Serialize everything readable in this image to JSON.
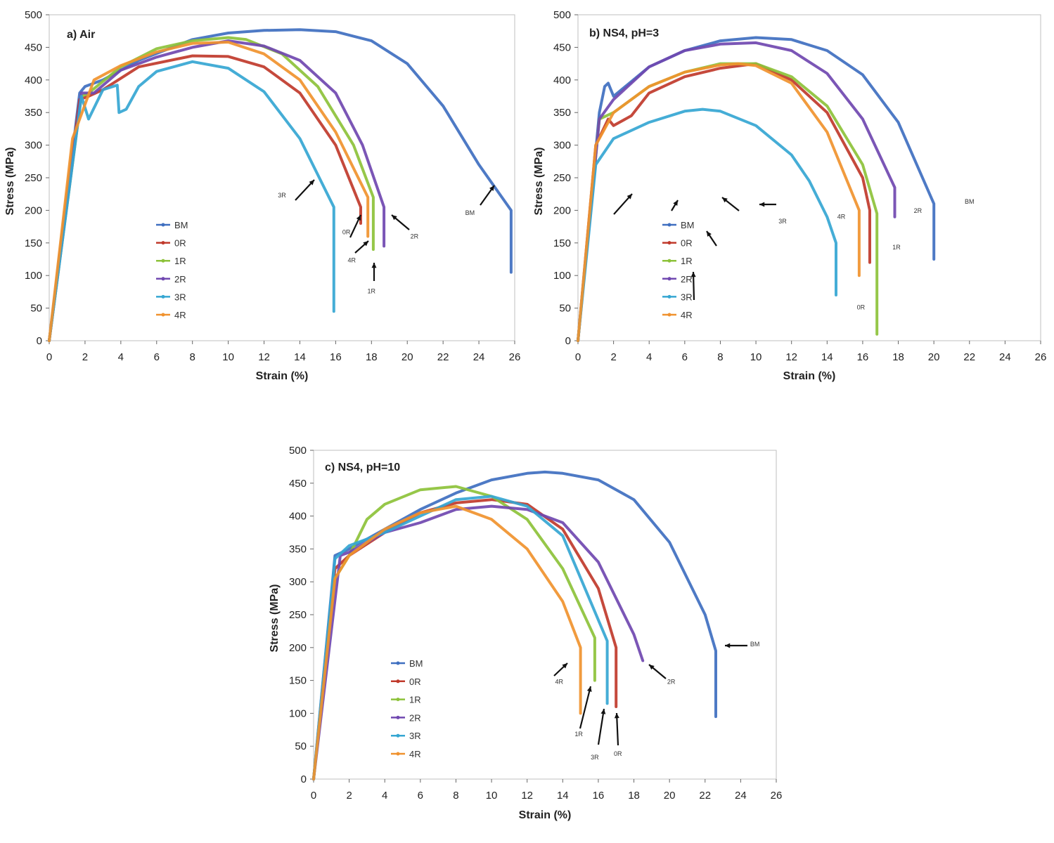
{
  "chart_data": [
    {
      "type": "line",
      "title": "a) Air",
      "xlabel": "Strain (%)",
      "ylabel": "Stress (MPa)",
      "xlim": [
        0,
        26
      ],
      "ylim": [
        0,
        500
      ],
      "xticks": [
        "0",
        "2",
        "4",
        "6",
        "8",
        "10",
        "12",
        "14",
        "16",
        "18",
        "20",
        "22",
        "24",
        "26"
      ],
      "yticks": [
        "0",
        "50",
        "100",
        "150",
        "200",
        "250",
        "300",
        "350",
        "400",
        "450",
        "500"
      ],
      "grid": false,
      "legend": "left-middle",
      "series": [
        {
          "name": "BM",
          "color": "#3f6fc0",
          "x": [
            0,
            1.7,
            2.0,
            3,
            5,
            8,
            10,
            12,
            14,
            16,
            18,
            20,
            22,
            24,
            25.8,
            25.8
          ],
          "y": [
            0,
            380,
            390,
            400,
            430,
            462,
            472,
            476,
            477,
            474,
            460,
            425,
            360,
            270,
            200,
            105
          ]
        },
        {
          "name": "0R",
          "color": "#c0392b",
          "x": [
            0,
            1.7,
            2.2,
            3,
            5,
            8,
            10,
            12,
            14,
            16,
            17.4,
            17.4
          ],
          "y": [
            0,
            370,
            375,
            385,
            420,
            437,
            436,
            420,
            380,
            300,
            205,
            180
          ]
        },
        {
          "name": "1R",
          "color": "#8dc23a",
          "x": [
            0,
            1.8,
            2.2,
            4,
            6,
            8,
            10,
            11,
            13,
            15,
            17,
            18.1,
            18.1
          ],
          "y": [
            0,
            375,
            380,
            420,
            448,
            460,
            465,
            462,
            440,
            390,
            300,
            220,
            140
          ]
        },
        {
          "name": "2R",
          "color": "#7048b0",
          "x": [
            0,
            1.8,
            2.5,
            4,
            6,
            8,
            10,
            12,
            14,
            16,
            17.5,
            18.7,
            18.7
          ],
          "y": [
            0,
            380,
            380,
            415,
            435,
            450,
            460,
            452,
            430,
            380,
            300,
            205,
            145
          ]
        },
        {
          "name": "3R",
          "color": "#35a6d2",
          "x": [
            0,
            1.8,
            2.2,
            3,
            3.8,
            3.9,
            4.3,
            5,
            6,
            8,
            10,
            12,
            14,
            15.9,
            15.9
          ],
          "y": [
            0,
            375,
            340,
            385,
            392,
            350,
            355,
            390,
            413,
            428,
            418,
            382,
            310,
            205,
            45
          ]
        },
        {
          "name": "4R",
          "color": "#f0922e",
          "x": [
            0,
            1.3,
            2.5,
            4,
            6,
            8,
            10,
            12,
            14,
            16,
            17.8,
            17.8
          ],
          "y": [
            0,
            310,
            400,
            422,
            443,
            456,
            458,
            440,
            400,
            320,
            220,
            160
          ]
        }
      ],
      "annotations": [
        {
          "text": "3R",
          "x": 13.0,
          "y": 220
        },
        {
          "text": "0R",
          "x": 16.6,
          "y": 163
        },
        {
          "text": "4R",
          "x": 16.9,
          "y": 120
        },
        {
          "text": "1R",
          "x": 18.0,
          "y": 73
        },
        {
          "text": "2R",
          "x": 20.4,
          "y": 157
        },
        {
          "text": "BM",
          "x": 23.5,
          "y": 193
        }
      ]
    },
    {
      "type": "line",
      "title": "b) NS4, pH=3",
      "xlabel": "Strain (%)",
      "ylabel": "Stress (MPa)",
      "xlim": [
        0,
        26
      ],
      "ylim": [
        0,
        500
      ],
      "xticks": [
        "0",
        "2",
        "4",
        "6",
        "8",
        "10",
        "12",
        "14",
        "16",
        "18",
        "20",
        "22",
        "24",
        "26"
      ],
      "yticks": [
        "0",
        "50",
        "100",
        "150",
        "200",
        "250",
        "300",
        "350",
        "400",
        "450",
        "500"
      ],
      "grid": false,
      "legend": "left-middle",
      "series": [
        {
          "name": "BM",
          "color": "#3f6fc0",
          "x": [
            0,
            1.2,
            1.5,
            1.7,
            2,
            4,
            6,
            8,
            10,
            12,
            14,
            16,
            18,
            20,
            20,
            20
          ],
          "y": [
            0,
            350,
            390,
            395,
            375,
            420,
            445,
            460,
            465,
            462,
            445,
            408,
            335,
            210,
            190,
            125
          ]
        },
        {
          "name": "0R",
          "color": "#c0392b",
          "x": [
            0,
            1.0,
            1.7,
            2,
            3,
            4,
            6,
            8,
            10,
            12,
            14,
            16,
            16.4,
            16.4
          ],
          "y": [
            0,
            300,
            340,
            330,
            345,
            380,
            405,
            418,
            425,
            400,
            350,
            250,
            200,
            120
          ]
        },
        {
          "name": "1R",
          "color": "#8dc23a",
          "x": [
            0,
            1.2,
            2,
            4,
            6,
            8,
            10,
            12,
            14,
            16,
            16.8,
            16.8
          ],
          "y": [
            0,
            340,
            350,
            390,
            412,
            425,
            425,
            405,
            360,
            270,
            195,
            10
          ]
        },
        {
          "name": "2R",
          "color": "#7048b0",
          "x": [
            0,
            1.2,
            2,
            4,
            6,
            8,
            10,
            12,
            14,
            16,
            17.8,
            17.8
          ],
          "y": [
            0,
            340,
            370,
            420,
            445,
            455,
            457,
            445,
            410,
            340,
            235,
            190
          ]
        },
        {
          "name": "3R",
          "color": "#35a6d2",
          "x": [
            0,
            1.0,
            2,
            4,
            6,
            7,
            8,
            10,
            12,
            13,
            14,
            14.5,
            14.5
          ],
          "y": [
            0,
            270,
            310,
            335,
            352,
            355,
            352,
            330,
            285,
            245,
            190,
            150,
            70
          ]
        },
        {
          "name": "4R",
          "color": "#f0922e",
          "x": [
            0,
            1.0,
            2,
            4,
            6,
            8,
            9,
            10,
            12,
            14,
            15.8,
            15.8
          ],
          "y": [
            0,
            300,
            350,
            390,
            412,
            423,
            425,
            422,
            395,
            320,
            200,
            100
          ]
        }
      ],
      "annotations": [
        {
          "text": "3R",
          "x": 11.5,
          "y": 180
        },
        {
          "text": "4R",
          "x": 14.8,
          "y": 187
        },
        {
          "text": "0R",
          "x": 15.9,
          "y": 48
        },
        {
          "text": "1R",
          "x": 17.9,
          "y": 140
        },
        {
          "text": "2R",
          "x": 19.1,
          "y": 196
        },
        {
          "text": "BM",
          "x": 22.0,
          "y": 210
        }
      ]
    },
    {
      "type": "line",
      "title": "c) NS4, pH=10",
      "xlabel": "Strain (%)",
      "ylabel": "Stress (MPa)",
      "xlim": [
        0,
        26
      ],
      "ylim": [
        0,
        500
      ],
      "xticks": [
        "0",
        "2",
        "4",
        "6",
        "8",
        "10",
        "12",
        "14",
        "16",
        "18",
        "20",
        "22",
        "24",
        "26"
      ],
      "yticks": [
        "0",
        "50",
        "100",
        "150",
        "200",
        "250",
        "300",
        "350",
        "400",
        "450",
        "500"
      ],
      "grid": false,
      "legend": "left-middle",
      "series": [
        {
          "name": "BM",
          "color": "#3f6fc0",
          "x": [
            0,
            1.2,
            2,
            4,
            6,
            8,
            10,
            12,
            13,
            14,
            16,
            18,
            20,
            22,
            22.6,
            22.6
          ],
          "y": [
            0,
            340,
            350,
            380,
            410,
            435,
            455,
            465,
            467,
            465,
            455,
            425,
            360,
            250,
            195,
            95
          ]
        },
        {
          "name": "0R",
          "color": "#c0392b",
          "x": [
            0,
            1.2,
            2,
            4,
            6,
            8,
            10,
            12,
            14,
            16,
            17,
            17
          ],
          "y": [
            0,
            320,
            340,
            375,
            405,
            420,
            425,
            418,
            380,
            290,
            200,
            110
          ]
        },
        {
          "name": "1R",
          "color": "#8dc23a",
          "x": [
            0,
            1.2,
            2,
            3,
            4,
            6,
            8,
            10,
            12,
            14,
            15.8,
            15.8
          ],
          "y": [
            0,
            305,
            340,
            395,
            418,
            440,
            445,
            430,
            395,
            320,
            215,
            150
          ]
        },
        {
          "name": "2R",
          "color": "#7048b0",
          "x": [
            0,
            1.5,
            2,
            4,
            6,
            8,
            10,
            12,
            14,
            16,
            18,
            18.5
          ],
          "y": [
            0,
            340,
            345,
            375,
            390,
            410,
            415,
            410,
            390,
            330,
            220,
            180
          ]
        },
        {
          "name": "3R",
          "color": "#35a6d2",
          "x": [
            0,
            1.2,
            2,
            4,
            6,
            8,
            10,
            12,
            14,
            16.5,
            16.5
          ],
          "y": [
            0,
            335,
            355,
            375,
            400,
            425,
            430,
            415,
            370,
            210,
            115
          ]
        },
        {
          "name": "4R",
          "color": "#f0922e",
          "x": [
            0,
            1.2,
            2,
            4,
            6,
            8,
            10,
            12,
            14,
            15,
            15
          ],
          "y": [
            0,
            305,
            340,
            380,
            405,
            415,
            395,
            350,
            270,
            200,
            100
          ]
        }
      ],
      "annotations": [
        {
          "text": "4R",
          "x": 13.8,
          "y": 145
        },
        {
          "text": "1R",
          "x": 14.9,
          "y": 65
        },
        {
          "text": "3R",
          "x": 15.8,
          "y": 30
        },
        {
          "text": "0R",
          "x": 17.1,
          "y": 35
        },
        {
          "text": "2R",
          "x": 20.1,
          "y": 145
        },
        {
          "text": "BM",
          "x": 24.8,
          "y": 202
        }
      ]
    }
  ]
}
